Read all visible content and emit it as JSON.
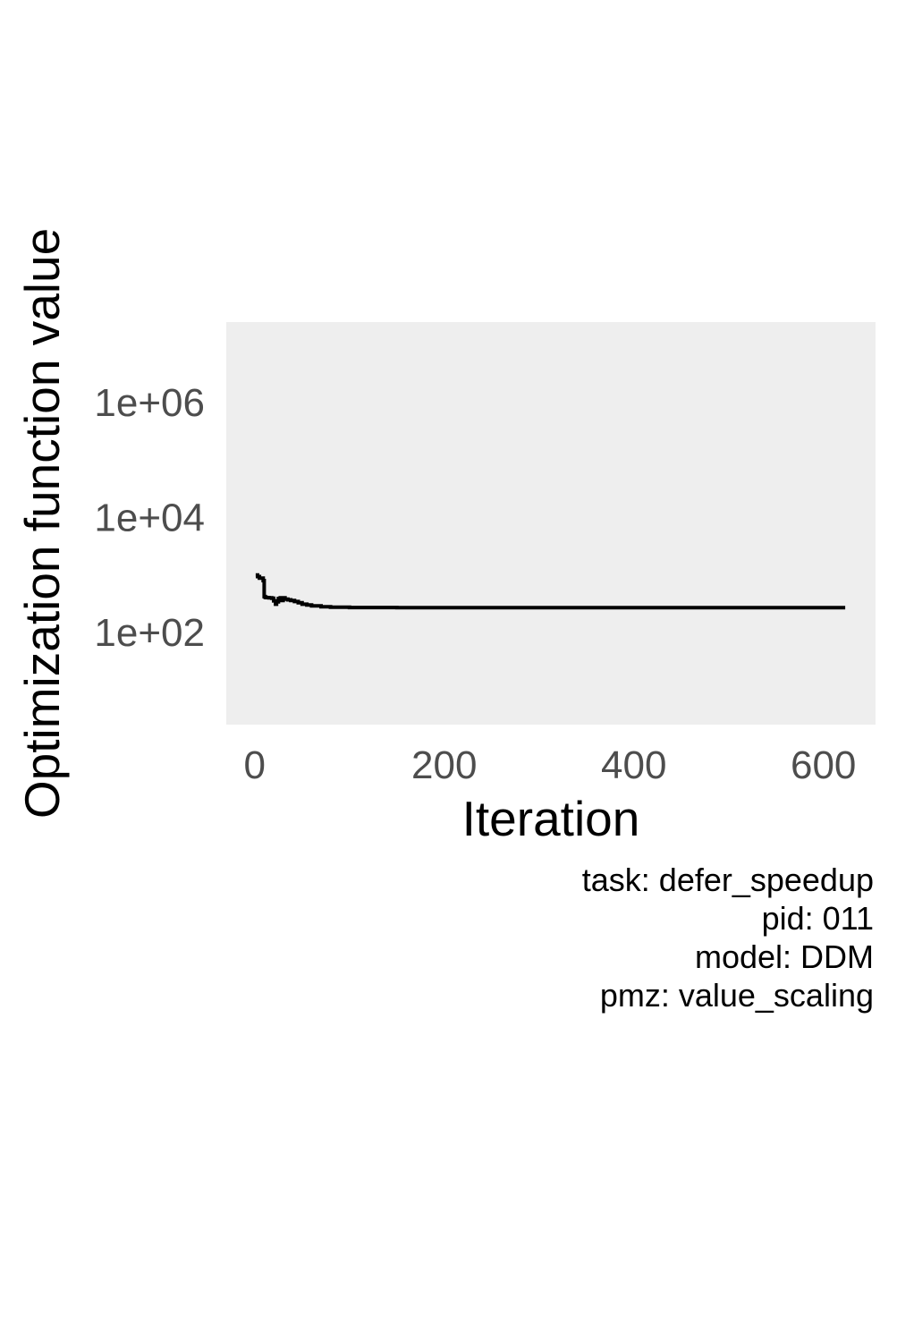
{
  "chart_data": {
    "type": "line",
    "line_style": "step",
    "xlabel": "Iteration",
    "ylabel": "Optimization function value",
    "x_ticks": [
      {
        "value": 0,
        "label": "0"
      },
      {
        "value": 200,
        "label": "200"
      },
      {
        "value": 400,
        "label": "400"
      },
      {
        "value": 600,
        "label": "600"
      }
    ],
    "y_scale": "log10",
    "y_ticks": [
      {
        "value": 100,
        "label": "1e+02"
      },
      {
        "value": 10000,
        "label": "1e+04"
      },
      {
        "value": 1000000,
        "label": "1e+06"
      }
    ],
    "xlim": [
      -30,
      655
    ],
    "ylim": [
      2.5,
      25000000
    ],
    "grid": false,
    "series": [
      {
        "color": "#000000",
        "x": [
          1,
          3,
          5,
          9,
          10,
          11,
          12,
          15,
          18,
          20,
          22,
          23,
          25,
          27,
          28,
          30,
          32,
          35,
          38,
          42,
          46,
          50,
          55,
          60,
          70,
          80,
          100,
          150,
          200,
          300,
          400,
          500,
          600,
          623
        ],
        "y": [
          1000,
          940,
          880,
          800,
          420,
          410,
          405,
          400,
          395,
          355,
          310,
          340,
          390,
          400,
          360,
          400,
          380,
          370,
          360,
          345,
          330,
          310,
          300,
          290,
          280,
          275,
          272,
          270,
          270,
          270,
          270,
          270,
          270,
          270
        ]
      }
    ]
  },
  "caption": {
    "task": "task: defer_speedup",
    "pid": "pid: 011",
    "model": "model: DDM",
    "pmz": "pmz: value_scaling"
  },
  "colors": {
    "panel_background": "#eeeeee",
    "line": "#000000",
    "tick_text": "#4d4d4d"
  }
}
